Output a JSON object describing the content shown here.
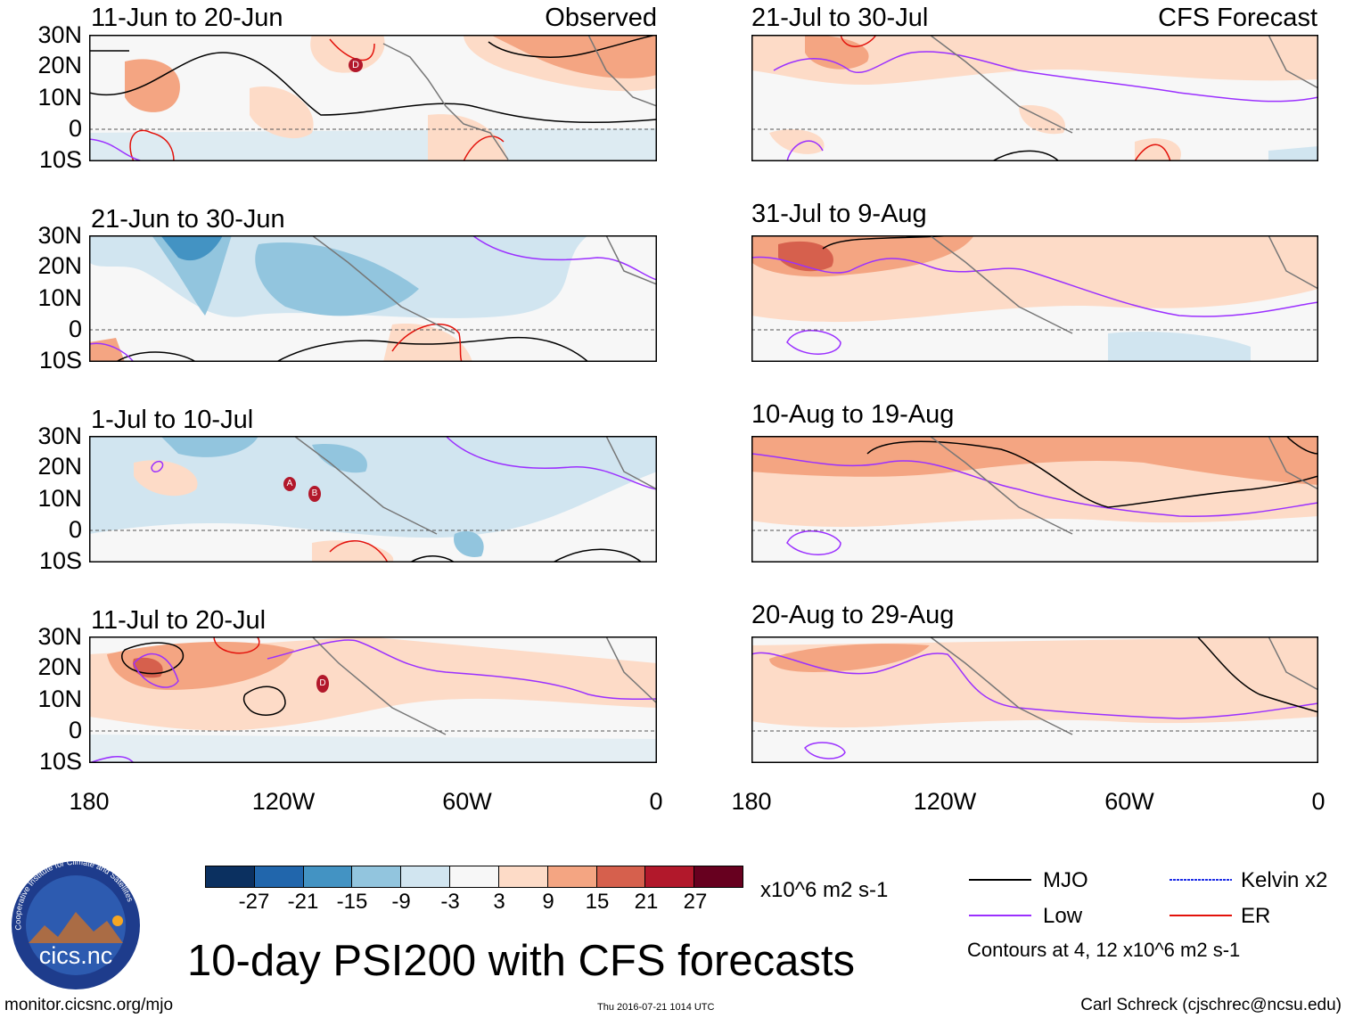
{
  "panels": [
    {
      "title": "11-Jun to 20-Jun",
      "corner_label": "Observed",
      "ymarkers": {
        "t1": "D"
      }
    },
    {
      "title": "21-Jun to 30-Jun",
      "corner_label": ""
    },
    {
      "title": "1-Jul to 10-Jul",
      "corner_label": ""
    },
    {
      "title": "11-Jul to 20-Jul",
      "corner_label": ""
    },
    {
      "title": "21-Jul to 30-Jul",
      "corner_label": "CFS Forecast"
    },
    {
      "title": "31-Jul to 9-Aug",
      "corner_label": ""
    },
    {
      "title": "10-Aug to 19-Aug",
      "corner_label": ""
    },
    {
      "title": "20-Aug to 29-Aug",
      "corner_label": ""
    }
  ],
  "markers": {
    "p1": "D",
    "p3a": "A",
    "p3b": "B",
    "p4": "D"
  },
  "lat_labels": [
    "30N",
    "20N",
    "10N",
    "0",
    "10S"
  ],
  "lon_labels": [
    "180",
    "120W",
    "60W",
    "0"
  ],
  "colorbar": {
    "labels": [
      "-27",
      "-21",
      "-15",
      "-9",
      "-3",
      "3",
      "9",
      "15",
      "21",
      "27"
    ],
    "colors": [
      "#0b3060",
      "#2166ac",
      "#4393c3",
      "#92c5de",
      "#d1e5f0",
      "#f7f7f7",
      "#fddbc7",
      "#f4a582",
      "#d6604d",
      "#b2182b",
      "#67001f"
    ],
    "units": "x10^6 m2 s-1"
  },
  "legend": {
    "mjo": "MJO",
    "kelvin": "Kelvin x2",
    "low": "Low",
    "er": "ER",
    "contours": "Contours at 4, 12 x10^6 m2 s-1",
    "colors": {
      "mjo": "#000000",
      "kelvin": "#1e2ee6",
      "low": "#9b30ff",
      "er": "#e3120b"
    }
  },
  "title": "10-day PSI200 with CFS forecasts",
  "logo": {
    "text": "cics.nc",
    "ring": "Cooperative Institute for Climate and Satellites"
  },
  "footer": {
    "url": "monitor.cicsnc.org/mjo",
    "timestamp": "Thu 2016-07-21 1014 UTC",
    "author": "Carl Schreck (cjschrec@ncsu.edu)"
  }
}
